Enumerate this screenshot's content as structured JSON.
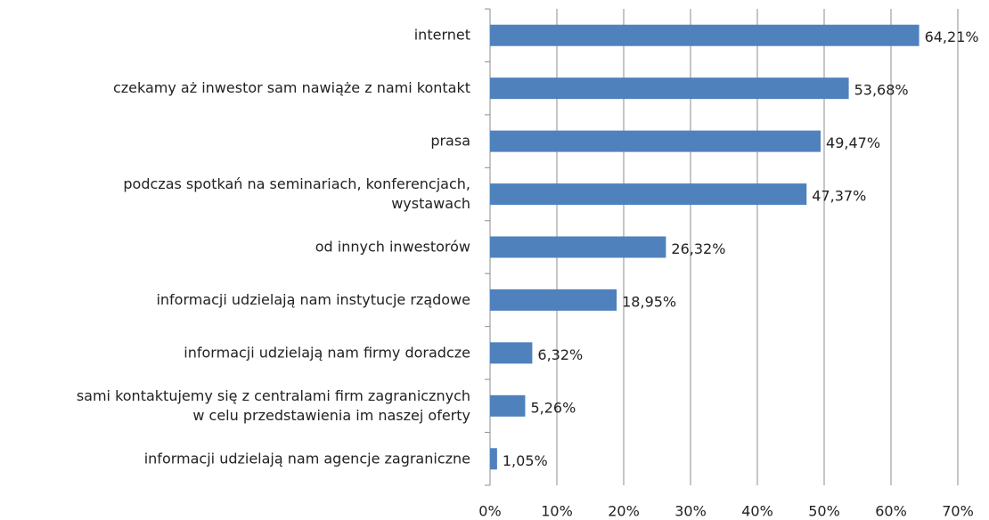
{
  "chart_data": {
    "type": "bar",
    "orientation": "horizontal",
    "categories": [
      "internet",
      "czekamy aż inwestor sam nawiąże z nami kontakt",
      "prasa",
      "podczas spotkań na seminariach, konferencjach,\nwystawach",
      "od innych inwestorów",
      "informacji udzielają nam instytucje rządowe",
      "informacji udzielają nam firmy doradcze",
      "sami kontaktujemy się z centralami firm zagranicznych\nw celu przedstawienia im naszej oferty",
      "informacji udzielają nam agencje zagraniczne"
    ],
    "values": [
      64.21,
      53.68,
      49.47,
      47.37,
      26.32,
      18.95,
      6.32,
      5.26,
      1.05
    ],
    "value_labels": [
      "64,21%",
      "53,68%",
      "49,47%",
      "47,37%",
      "26,32%",
      "18,95%",
      "6,32%",
      "5,26%",
      "1,05%"
    ],
    "color": "#4f81bd",
    "xlim": [
      0,
      70
    ],
    "xticks": [
      {
        "value": 0,
        "label": "0%"
      },
      {
        "value": 10,
        "label": "10%"
      },
      {
        "value": 20,
        "label": "20%"
      },
      {
        "value": 30,
        "label": "30%"
      },
      {
        "value": 40,
        "label": "40%"
      },
      {
        "value": 50,
        "label": "50%"
      },
      {
        "value": 60,
        "label": "60%"
      },
      {
        "value": 70,
        "label": "70%"
      }
    ],
    "grid": true
  }
}
